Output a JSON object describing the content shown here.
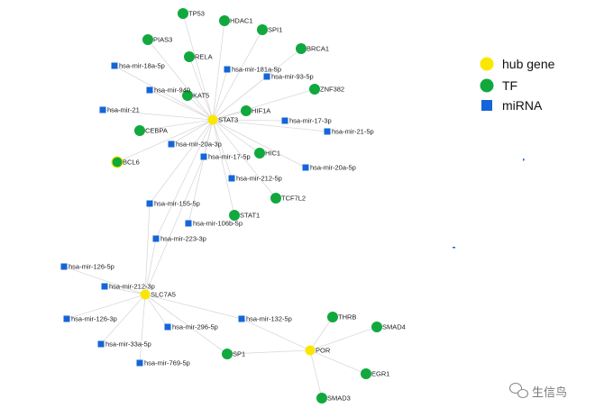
{
  "legend": {
    "hub": {
      "label": "hub gene",
      "color": "#fae700"
    },
    "tf": {
      "label": "TF",
      "color": "#11a83e"
    },
    "mirna": {
      "label": "miRNA",
      "color": "#1565d8"
    }
  },
  "watermark": {
    "text": "生信鸟"
  },
  "nodes": [
    {
      "id": "STAT3",
      "label": "STAT3",
      "type": "hub"
    },
    {
      "id": "SLC7A5",
      "label": "SLC7A5",
      "type": "hub"
    },
    {
      "id": "POR",
      "label": "POR",
      "type": "hub"
    },
    {
      "id": "TP53",
      "label": "TP53",
      "type": "tf"
    },
    {
      "id": "HDAC1",
      "label": "HDAC1",
      "type": "tf"
    },
    {
      "id": "SPI1",
      "label": "SPI1",
      "type": "tf"
    },
    {
      "id": "PIAS3",
      "label": "PIAS3",
      "type": "tf"
    },
    {
      "id": "BRCA1",
      "label": "BRCA1",
      "type": "tf"
    },
    {
      "id": "RELA",
      "label": "RELA",
      "type": "tf"
    },
    {
      "id": "ZNF382",
      "label": "ZNF382",
      "type": "tf"
    },
    {
      "id": "KAT5",
      "label": "KAT5",
      "type": "tf"
    },
    {
      "id": "HIF1A",
      "label": "HIF1A",
      "type": "tf"
    },
    {
      "id": "CEBPA",
      "label": "CEBPA",
      "type": "tf"
    },
    {
      "id": "BCL6",
      "label": "BCL6",
      "type": "tf"
    },
    {
      "id": "HIC1",
      "label": "HIC1",
      "type": "tf"
    },
    {
      "id": "TCF7L2",
      "label": "TCF7L2",
      "type": "tf"
    },
    {
      "id": "STAT1",
      "label": "STAT1",
      "type": "tf"
    },
    {
      "id": "THRB",
      "label": "THRB",
      "type": "tf"
    },
    {
      "id": "SMAD4",
      "label": "SMAD4",
      "type": "tf"
    },
    {
      "id": "SP1",
      "label": "SP1",
      "type": "tf"
    },
    {
      "id": "EGR1",
      "label": "EGR1",
      "type": "tf"
    },
    {
      "id": "SMAD3",
      "label": "SMAD3",
      "type": "tf"
    },
    {
      "id": "mir18a5p",
      "label": "hsa-mir-18a-5p",
      "type": "mirna"
    },
    {
      "id": "mir181a5p",
      "label": "hsa-mir-181a-5p",
      "type": "mirna"
    },
    {
      "id": "mir935p",
      "label": "hsa-mir-93-5p",
      "type": "mirna"
    },
    {
      "id": "mir940",
      "label": "hsa-mir-940",
      "type": "mirna"
    },
    {
      "id": "mir21",
      "label": "hsa-mir-21",
      "type": "mirna"
    },
    {
      "id": "mir173p",
      "label": "hsa-mir-17-3p",
      "type": "mirna"
    },
    {
      "id": "mir215p",
      "label": "hsa-mir-21-5p",
      "type": "mirna"
    },
    {
      "id": "mir20a3p",
      "label": "hsa-mir-20a-3p",
      "type": "mirna"
    },
    {
      "id": "mir175p",
      "label": "hsa-mir-17-5p",
      "type": "mirna"
    },
    {
      "id": "mir20a5p",
      "label": "hsa-mir-20a-5p",
      "type": "mirna"
    },
    {
      "id": "mir2125p",
      "label": "hsa-mir-212-5p",
      "type": "mirna"
    },
    {
      "id": "mir1555p",
      "label": "hsa-mir-155-5p",
      "type": "mirna"
    },
    {
      "id": "mir106b5p",
      "label": "hsa-mir-106b-5p",
      "type": "mirna"
    },
    {
      "id": "mir2233p",
      "label": "hsa-mir-223-3p",
      "type": "mirna"
    },
    {
      "id": "mir1265p",
      "label": "hsa-mir-126-5p",
      "type": "mirna"
    },
    {
      "id": "mir2123p",
      "label": "hsa-mir-212-3p",
      "type": "mirna"
    },
    {
      "id": "mir1263p",
      "label": "hsa-mir-126-3p",
      "type": "mirna"
    },
    {
      "id": "mir2965p",
      "label": "hsa-mir-296-5p",
      "type": "mirna"
    },
    {
      "id": "mir1325p",
      "label": "hsa-mir-132-5p",
      "type": "mirna"
    },
    {
      "id": "mir33a5p",
      "label": "hsa-mir-33a-5p",
      "type": "mirna"
    },
    {
      "id": "mir7695p",
      "label": "hsa-mir-769-5p",
      "type": "mirna"
    }
  ],
  "edges": [
    [
      "STAT3",
      "TP53"
    ],
    [
      "STAT3",
      "HDAC1"
    ],
    [
      "STAT3",
      "SPI1"
    ],
    [
      "STAT3",
      "PIAS3"
    ],
    [
      "STAT3",
      "BRCA1"
    ],
    [
      "STAT3",
      "RELA"
    ],
    [
      "STAT3",
      "ZNF382"
    ],
    [
      "STAT3",
      "KAT5"
    ],
    [
      "STAT3",
      "HIF1A"
    ],
    [
      "STAT3",
      "CEBPA"
    ],
    [
      "STAT3",
      "BCL6"
    ],
    [
      "STAT3",
      "HIC1"
    ],
    [
      "STAT3",
      "TCF7L2"
    ],
    [
      "STAT3",
      "STAT1"
    ],
    [
      "STAT3",
      "mir18a5p"
    ],
    [
      "STAT3",
      "mir181a5p"
    ],
    [
      "STAT3",
      "mir935p"
    ],
    [
      "STAT3",
      "mir940"
    ],
    [
      "STAT3",
      "mir21"
    ],
    [
      "STAT3",
      "mir173p"
    ],
    [
      "STAT3",
      "mir215p"
    ],
    [
      "STAT3",
      "mir20a3p"
    ],
    [
      "STAT3",
      "mir175p"
    ],
    [
      "STAT3",
      "mir20a5p"
    ],
    [
      "STAT3",
      "mir2125p"
    ],
    [
      "STAT3",
      "mir1555p"
    ],
    [
      "STAT3",
      "mir106b5p"
    ],
    [
      "STAT3",
      "mir2233p"
    ],
    [
      "SLC7A5",
      "mir175p"
    ],
    [
      "SLC7A5",
      "mir1555p"
    ],
    [
      "SLC7A5",
      "mir2233p"
    ],
    [
      "SLC7A5",
      "mir1265p"
    ],
    [
      "SLC7A5",
      "mir2123p"
    ],
    [
      "SLC7A5",
      "mir1263p"
    ],
    [
      "SLC7A5",
      "mir2965p"
    ],
    [
      "SLC7A5",
      "mir1325p"
    ],
    [
      "SLC7A5",
      "mir33a5p"
    ],
    [
      "SLC7A5",
      "mir7695p"
    ],
    [
      "SLC7A5",
      "SP1"
    ],
    [
      "POR",
      "THRB"
    ],
    [
      "POR",
      "SMAD4"
    ],
    [
      "POR",
      "SP1"
    ],
    [
      "POR",
      "EGR1"
    ],
    [
      "POR",
      "SMAD3"
    ],
    [
      "POR",
      "mir1325p"
    ]
  ]
}
